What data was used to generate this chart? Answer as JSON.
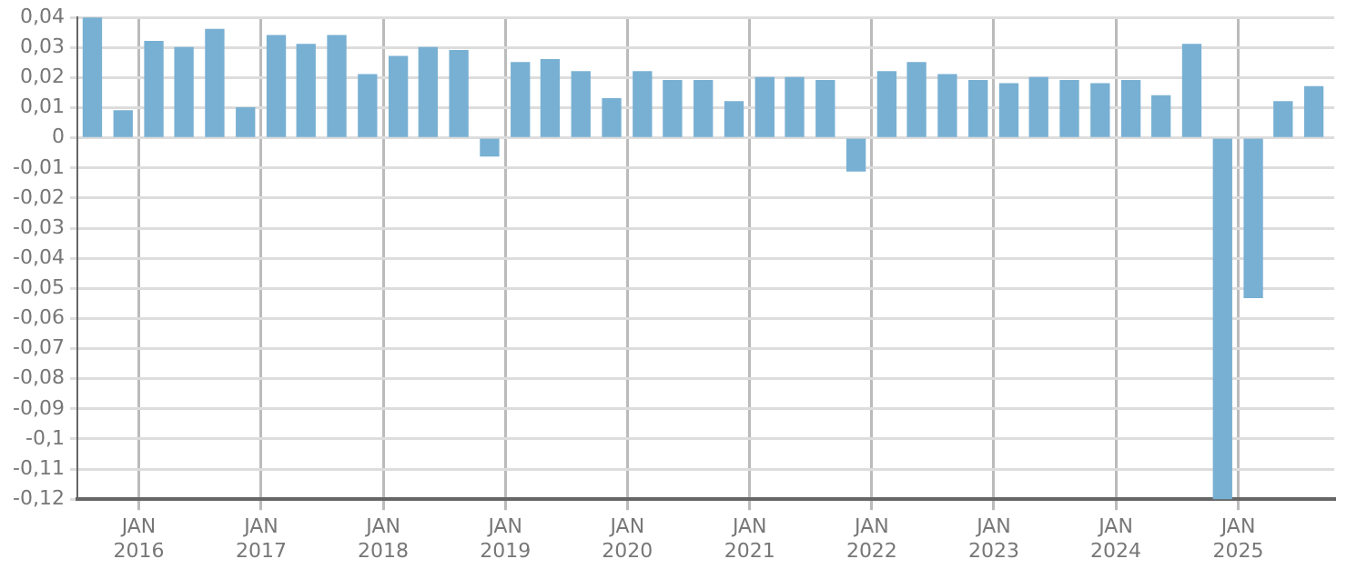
{
  "chart_data": {
    "type": "bar",
    "x": [
      "2015-08-15",
      "2015-11-15",
      "2016-02-15",
      "2016-05-15",
      "2016-08-15",
      "2016-11-15",
      "2017-02-15",
      "2017-05-15",
      "2017-08-15",
      "2017-11-15",
      "2018-02-15",
      "2018-05-15",
      "2018-08-15",
      "2018-11-15",
      "2019-02-15",
      "2019-05-15",
      "2019-08-15",
      "2019-11-15",
      "2020-02-15",
      "2020-05-15",
      "2020-08-15",
      "2020-11-15",
      "2021-02-15",
      "2021-05-15",
      "2021-08-15",
      "2021-11-15",
      "2022-02-15",
      "2022-05-15",
      "2022-08-15",
      "2022-11-15",
      "2023-02-15",
      "2023-05-15",
      "2023-08-15",
      "2023-11-15",
      "2024-02-15",
      "2024-05-15",
      "2024-08-15",
      "2024-11-15",
      "2025-02-15",
      "2025-05-15",
      "2025-08-15"
    ],
    "values": [
      0.04,
      0.009,
      0.032,
      0.03,
      0.036,
      0.01,
      0.034,
      0.031,
      0.034,
      0.021,
      0.027,
      0.03,
      0.029,
      -0.006,
      0.025,
      0.026,
      0.022,
      0.013,
      0.022,
      0.019,
      0.019,
      0.012,
      0.02,
      0.02,
      0.019,
      -0.011,
      0.022,
      0.025,
      0.021,
      0.019,
      0.018,
      0.02,
      0.019,
      0.018,
      0.019,
      0.014,
      0.031,
      -0.12,
      -0.053,
      0.012,
      0.017
    ],
    "color": "#78b0d3",
    "xlim": [
      "2015-07-01",
      "2025-10-15"
    ],
    "xticks": [
      {
        "value": "2016-01-01",
        "label": "JAN 2016"
      },
      {
        "value": "2017-01-01",
        "label": "JAN 2017"
      },
      {
        "value": "2018-01-01",
        "label": "JAN 2018"
      },
      {
        "value": "2019-01-01",
        "label": "JAN 2019"
      },
      {
        "value": "2020-01-01",
        "label": "JAN 2020"
      },
      {
        "value": "2021-01-01",
        "label": "JAN 2021"
      },
      {
        "value": "2022-01-01",
        "label": "JAN 2022"
      },
      {
        "value": "2023-01-01",
        "label": "JAN 2023"
      },
      {
        "value": "2024-01-01",
        "label": "JAN 2024"
      },
      {
        "value": "2025-01-01",
        "label": "JAN 2025"
      }
    ],
    "ylim": [
      -0.12,
      0.04
    ],
    "yticks": [
      {
        "value": 0.04,
        "label": "0,04"
      },
      {
        "value": 0.03,
        "label": "0,03"
      },
      {
        "value": 0.02,
        "label": "0,02"
      },
      {
        "value": 0.01,
        "label": "0,01"
      },
      {
        "value": 0,
        "label": "0"
      },
      {
        "value": -0.01,
        "label": "-0,01"
      },
      {
        "value": -0.02,
        "label": "-0,02"
      },
      {
        "value": -0.03,
        "label": "-0,03"
      },
      {
        "value": -0.04,
        "label": "-0,04"
      },
      {
        "value": -0.05,
        "label": "-0,05"
      },
      {
        "value": -0.06,
        "label": "-0,06"
      },
      {
        "value": -0.07,
        "label": "-0,07"
      },
      {
        "value": -0.08,
        "label": "-0,08"
      },
      {
        "value": -0.09,
        "label": "-0,09"
      },
      {
        "value": -0.1,
        "label": "-0,1"
      },
      {
        "value": -0.11,
        "label": "-0,11"
      },
      {
        "value": -0.12,
        "label": "-0,12"
      }
    ],
    "grid": true,
    "legend": false
  }
}
